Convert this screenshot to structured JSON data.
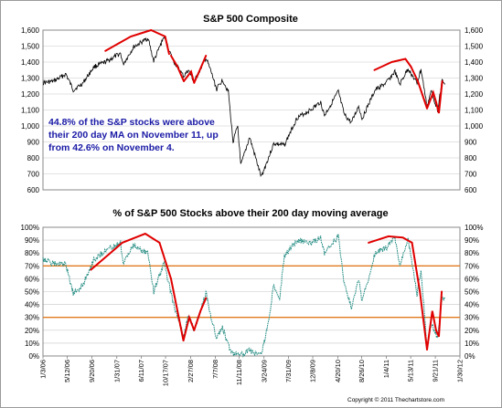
{
  "copyright": "Copyright © 2011 Thechartstore.com",
  "colors": {
    "sp_line": "#000000",
    "breadth_line": "#1f8a80",
    "trend_arc": "#e00000",
    "threshold_line": "#e07a1f",
    "grid": "#c8c8c8",
    "note_text": "#1a1aa6"
  },
  "chart_data": [
    {
      "type": "line",
      "title": "S&P 500 Composite",
      "annotation": [
        "44.8% of the S&P stocks were above",
        "their 200 day MA on November 11, up",
        "from 42.6% on November 4."
      ],
      "ylim": [
        600,
        1600
      ],
      "yticks": [
        600,
        700,
        800,
        900,
        1000,
        1100,
        1200,
        1300,
        1400,
        1500,
        1600
      ],
      "ytick_labels": [
        "600",
        "700",
        "800",
        "900",
        "1,000",
        "1,100",
        "1,200",
        "1,300",
        "1,400",
        "1,500",
        "1,600"
      ],
      "grid": true,
      "x_range": [
        "2006-01-03",
        "2011-11-11"
      ],
      "series": [
        {
          "x": [
            "2006-01-03",
            "2006-03-01",
            "2006-05-05",
            "2006-06-13",
            "2006-08-01",
            "2006-10-01",
            "2006-12-01",
            "2007-02-20",
            "2007-03-05",
            "2007-05-01",
            "2007-07-16",
            "2007-08-15",
            "2007-10-09",
            "2007-11-26",
            "2008-01-22",
            "2008-02-15",
            "2008-03-17",
            "2008-05-19",
            "2008-06-15",
            "2008-07-15",
            "2008-08-15",
            "2008-09-15",
            "2008-10-10",
            "2008-11-04",
            "2008-11-20",
            "2009-01-06",
            "2009-03-09",
            "2009-05-15",
            "2009-07-10",
            "2009-09-15",
            "2009-12-01",
            "2010-01-19",
            "2010-02-08",
            "2010-04-23",
            "2010-05-25",
            "2010-07-02",
            "2010-08-09",
            "2010-08-27",
            "2010-11-05",
            "2011-01-03",
            "2011-02-18",
            "2011-03-16",
            "2011-04-29",
            "2011-06-16",
            "2011-07-07",
            "2011-08-08",
            "2011-08-31",
            "2011-10-03",
            "2011-10-27",
            "2011-11-11"
          ],
          "values": [
            1270,
            1280,
            1325,
            1225,
            1265,
            1370,
            1400,
            1455,
            1385,
            1495,
            1550,
            1405,
            1560,
            1410,
            1310,
            1350,
            1275,
            1425,
            1340,
            1230,
            1290,
            1215,
            900,
            1000,
            750,
            930,
            680,
            890,
            880,
            1050,
            1105,
            1150,
            1065,
            1215,
            1070,
            1020,
            1125,
            1045,
            1225,
            1270,
            1340,
            1260,
            1360,
            1265,
            1355,
            1120,
            1220,
            1100,
            1285,
            1260
          ]
        }
      ],
      "trend_arcs": [
        {
          "x": [
            "2006-12-01",
            "2007-04-15",
            "2007-08-01",
            "2007-10-15",
            "2007-11-05"
          ],
          "values": [
            1470,
            1560,
            1600,
            1560,
            1450
          ]
        },
        {
          "x": [
            "2007-11-15",
            "2007-12-20",
            "2008-01-22"
          ],
          "values": [
            1440,
            1370,
            1280
          ]
        },
        {
          "x": [
            "2008-01-22",
            "2008-03-01",
            "2008-03-17"
          ],
          "values": [
            1280,
            1340,
            1270
          ]
        },
        {
          "x": [
            "2008-03-17",
            "2008-04-20",
            "2008-05-19"
          ],
          "values": [
            1270,
            1360,
            1440
          ]
        },
        {
          "x": [
            "2010-11-01",
            "2011-02-01",
            "2011-04-15",
            "2011-05-15"
          ],
          "values": [
            1350,
            1400,
            1420,
            1370
          ]
        },
        {
          "x": [
            "2011-05-15",
            "2011-06-20",
            "2011-08-08"
          ],
          "values": [
            1370,
            1280,
            1110
          ]
        },
        {
          "x": [
            "2011-08-08",
            "2011-09-10",
            "2011-09-25"
          ],
          "values": [
            1110,
            1210,
            1150
          ]
        },
        {
          "x": [
            "2011-09-25",
            "2011-10-10",
            "2011-10-28"
          ],
          "values": [
            1150,
            1080,
            1280
          ]
        }
      ]
    },
    {
      "type": "line",
      "title": "% of S&P 500 Stocks above their 200 day moving average",
      "ylim": [
        0,
        100
      ],
      "yticks": [
        0,
        10,
        20,
        30,
        40,
        50,
        60,
        70,
        80,
        90,
        100
      ],
      "ytick_labels": [
        "0%",
        "10%",
        "20%",
        "30%",
        "40%",
        "50%",
        "60%",
        "70%",
        "80%",
        "90%",
        "100%"
      ],
      "grid": true,
      "x_range": [
        "2006-01-03",
        "2011-11-11"
      ],
      "x_tick_labels": [
        {
          "date": "2006-01-03",
          "label": "1/3/06"
        },
        {
          "date": "2006-05-12",
          "label": "5/12/06"
        },
        {
          "date": "2006-09-20",
          "label": "9/20/06"
        },
        {
          "date": "2007-01-31",
          "label": "1/31/07"
        },
        {
          "date": "2007-06-11",
          "label": "6/11/07"
        },
        {
          "date": "2007-10-17",
          "label": "10/17/07"
        },
        {
          "date": "2008-02-27",
          "label": "2/27/08"
        },
        {
          "date": "2008-07-07",
          "label": "7/7/08"
        },
        {
          "date": "2008-11-11",
          "label": "11/11/08"
        },
        {
          "date": "2009-03-24",
          "label": "3/24/09"
        },
        {
          "date": "2009-07-31",
          "label": "7/31/09"
        },
        {
          "date": "2009-12-08",
          "label": "12/8/09"
        },
        {
          "date": "2010-04-20",
          "label": "4/20/10"
        },
        {
          "date": "2010-08-26",
          "label": "8/26/10"
        },
        {
          "date": "2011-01-04",
          "label": "1/4/11"
        },
        {
          "date": "2011-05-13",
          "label": "5/13/11"
        },
        {
          "date": "2011-09-21",
          "label": "9/21/11"
        },
        {
          "date": "2012-01-30",
          "label": "1/30/12"
        }
      ],
      "reference_lines": [
        70,
        30
      ],
      "series": [
        {
          "x": [
            "2006-01-03",
            "2006-02-15",
            "2006-05-05",
            "2006-06-13",
            "2006-08-01",
            "2006-10-01",
            "2006-12-01",
            "2007-02-20",
            "2007-03-05",
            "2007-05-01",
            "2007-07-16",
            "2007-08-15",
            "2007-10-09",
            "2007-11-26",
            "2008-01-22",
            "2008-02-15",
            "2008-03-17",
            "2008-05-19",
            "2008-06-15",
            "2008-07-15",
            "2008-08-15",
            "2008-09-15",
            "2008-10-10",
            "2008-11-04",
            "2008-11-20",
            "2009-01-06",
            "2009-03-09",
            "2009-04-15",
            "2009-05-15",
            "2009-06-15",
            "2009-07-10",
            "2009-09-15",
            "2009-12-01",
            "2010-01-19",
            "2010-02-08",
            "2010-04-23",
            "2010-05-25",
            "2010-07-02",
            "2010-08-09",
            "2010-08-27",
            "2010-11-05",
            "2011-01-03",
            "2011-02-18",
            "2011-03-16",
            "2011-04-29",
            "2011-06-16",
            "2011-07-07",
            "2011-08-08",
            "2011-08-31",
            "2011-10-03",
            "2011-10-27",
            "2011-11-11"
          ],
          "values": [
            76,
            72,
            71,
            48,
            55,
            75,
            82,
            88,
            72,
            86,
            80,
            50,
            72,
            42,
            15,
            32,
            20,
            49,
            30,
            14,
            22,
            8,
            2,
            3,
            1,
            4,
            1,
            25,
            55,
            45,
            78,
            90,
            88,
            92,
            80,
            93,
            55,
            38,
            60,
            42,
            80,
            84,
            92,
            70,
            91,
            48,
            67,
            8,
            25,
            14,
            44,
            44.8
          ]
        }
      ],
      "trend_arcs": [
        {
          "x": [
            "2006-09-15",
            "2007-03-01",
            "2007-07-01",
            "2007-09-15"
          ],
          "values": [
            67,
            88,
            95,
            88
          ]
        },
        {
          "x": [
            "2007-09-15",
            "2007-11-15",
            "2008-01-20"
          ],
          "values": [
            88,
            60,
            12
          ]
        },
        {
          "x": [
            "2008-01-20",
            "2008-02-20",
            "2008-03-17"
          ],
          "values": [
            12,
            30,
            20
          ]
        },
        {
          "x": [
            "2008-03-17",
            "2008-04-20",
            "2008-05-19"
          ],
          "values": [
            20,
            35,
            45
          ]
        },
        {
          "x": [
            "2010-10-01",
            "2011-01-15",
            "2011-04-01",
            "2011-05-20"
          ],
          "values": [
            88,
            93,
            92,
            88
          ]
        },
        {
          "x": [
            "2011-05-20",
            "2011-07-01",
            "2011-08-08"
          ],
          "values": [
            88,
            50,
            5
          ]
        },
        {
          "x": [
            "2011-08-08",
            "2011-09-05",
            "2011-09-25"
          ],
          "values": [
            5,
            35,
            20
          ]
        },
        {
          "x": [
            "2011-09-25",
            "2011-10-10",
            "2011-10-25"
          ],
          "values": [
            20,
            15,
            50
          ]
        }
      ]
    }
  ]
}
